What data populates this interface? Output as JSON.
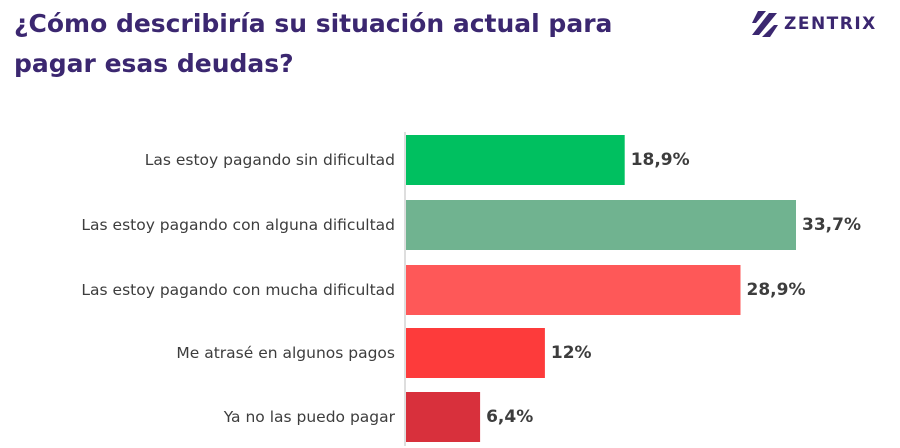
{
  "title": "¿Cómo describiría su situación actual para pagar esas deudas?",
  "brand": {
    "name": "ZENTRIX",
    "color": "#3b2770"
  },
  "chart_data": {
    "type": "bar",
    "orientation": "horizontal",
    "title": "¿Cómo describiría su situación actual para pagar esas deudas?",
    "xlabel": "",
    "ylabel": "",
    "unit": "%",
    "xlim": [
      0,
      35
    ],
    "grid": false,
    "categories": [
      "Las estoy pagando sin dificultad",
      "Las estoy pagando con alguna dificultad",
      "Las estoy pagando con mucha dificultad",
      "Me atrasé en algunos pagos",
      "Ya no las puedo pagar"
    ],
    "values": [
      18.9,
      33.7,
      28.9,
      12,
      6.4
    ],
    "value_labels": [
      "18,9%",
      "33,7%",
      "28,9%",
      "12%",
      "6,4%"
    ],
    "colors": [
      "#00c060",
      "#70b390",
      "#fe5858",
      "#fd3b3b",
      "#d8303c"
    ]
  }
}
